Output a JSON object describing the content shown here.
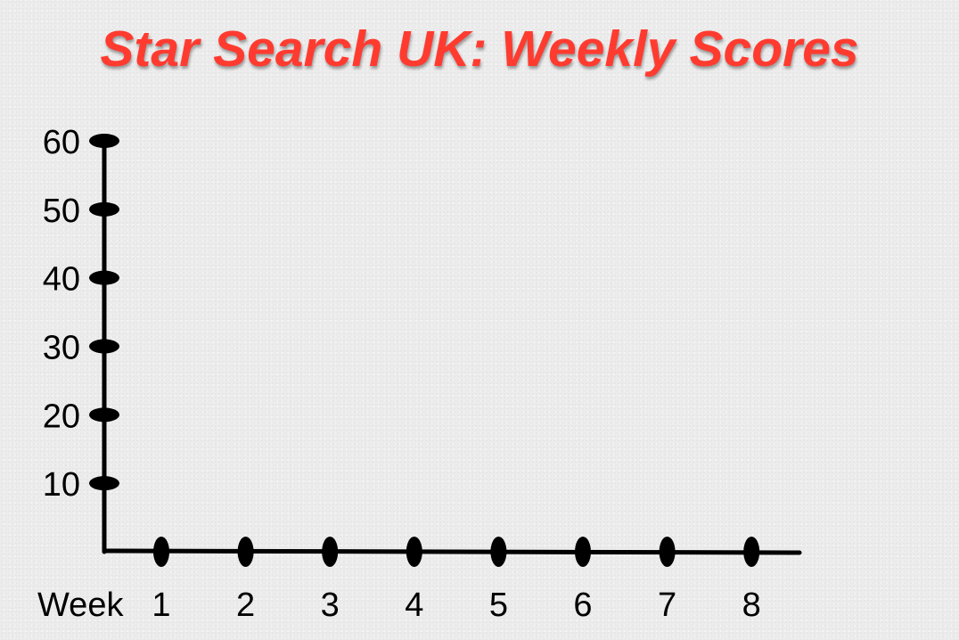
{
  "title": "Star Search UK: Weekly Scores",
  "chart_data": {
    "type": "line",
    "title": "Star Search UK: Weekly Scores",
    "xlabel": "Week",
    "ylabel": "",
    "x_ticks": [
      "1",
      "2",
      "3",
      "4",
      "5",
      "6",
      "7",
      "8"
    ],
    "y_ticks": [
      "10",
      "20",
      "30",
      "40",
      "50",
      "60"
    ],
    "ylim": [
      0,
      60
    ],
    "series": [],
    "grid": false,
    "legend": "none"
  },
  "colors": {
    "title": "#ff3b30",
    "axis": "#000000",
    "background": "#ececec"
  }
}
